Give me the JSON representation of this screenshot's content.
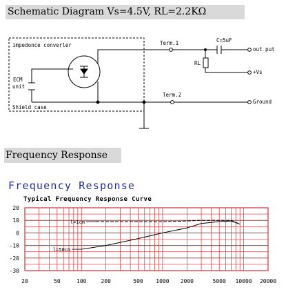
{
  "schematic": {
    "title": "Schematic Diagram  Vs=4.5V, RL=2.2KΩ",
    "box_label": "impedonce converler",
    "ecm_label_1": "ECM",
    "ecm_label_2": "unit",
    "shield_label": "Shield case",
    "term1": "Term.1",
    "term2": "Term.2",
    "rl": "RL",
    "cap": "C=5uF",
    "output": "out put",
    "vs": "+Vs",
    "ground": "Ground"
  },
  "frequency_heading": "Frequency Response",
  "chart_data": {
    "type": "line",
    "title": "Frequency Response",
    "subtitle": "Typical Frequency Response Curve",
    "x_scale": "log",
    "x_ticks": [
      "20",
      "50",
      "100",
      "200",
      "500",
      "1000",
      "2000",
      "5000",
      "10000",
      "20000"
    ],
    "y_ticks": [
      "20",
      "10",
      "0",
      "-10",
      "-20",
      "-30"
    ],
    "xlim": [
      20,
      20000
    ],
    "ylim": [
      -30,
      20
    ],
    "grid": true,
    "series": [
      {
        "name": "l=1cm",
        "style": "dashed",
        "x": [
          150,
          500,
          1000,
          2000,
          3000,
          5000,
          7000,
          9000
        ],
        "y": [
          9,
          9,
          9,
          9.5,
          10,
          10,
          10,
          7
        ]
      },
      {
        "name": "l=50cm",
        "style": "solid",
        "x": [
          100,
          200,
          500,
          1000,
          2000,
          3000,
          5000,
          7000,
          9000
        ],
        "y": [
          -13,
          -10,
          -4.5,
          0,
          4,
          7.5,
          9,
          9.5,
          7
        ]
      }
    ],
    "colors": {
      "grid": "#d03030",
      "curve": "#000000",
      "title": "#1f2fa0"
    }
  }
}
